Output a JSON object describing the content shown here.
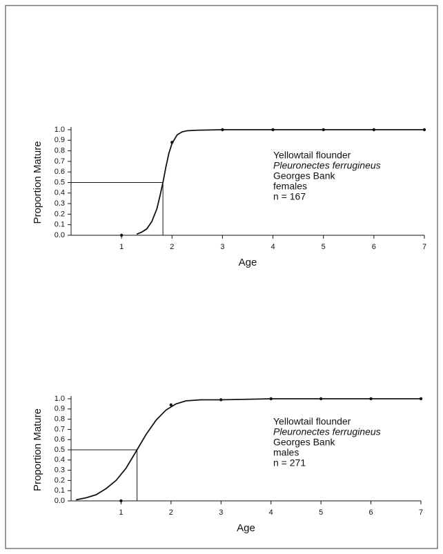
{
  "chart_data": [
    {
      "type": "scatter",
      "x_label": "Age",
      "y_label": "Proportion Mature",
      "annotation": [
        "Yellowtail flounder",
        "Pleuronectes ferrugineus",
        "Georges Bank",
        "females",
        "n = 167"
      ],
      "xlim": [
        0,
        7
      ],
      "xticks": [
        1,
        2,
        3,
        4,
        5,
        6,
        7
      ],
      "ylim": [
        0,
        1
      ],
      "yticks": [
        {
          "value": 0,
          "label": "0.0"
        },
        {
          "value": 0.1,
          "label": "0.1"
        },
        {
          "value": 0.2,
          "label": "0.2"
        },
        {
          "value": 0.3,
          "label": "0.3"
        },
        {
          "value": 0.4,
          "label": "0.4"
        },
        {
          "value": 0.5,
          "label": "0.5"
        },
        {
          "value": 0.6,
          "label": "0.6"
        },
        {
          "value": 0.7,
          "label": "0.7"
        },
        {
          "value": 0.8,
          "label": "0.8"
        },
        {
          "value": 0.9,
          "label": "0.9"
        },
        {
          "value": 1,
          "label": "1.0"
        }
      ],
      "points": {
        "x": [
          1,
          2,
          3,
          4,
          5,
          6,
          7
        ],
        "values": [
          0.0,
          0.88,
          1.0,
          1.0,
          1.0,
          1.0,
          1.0
        ]
      },
      "curve": {
        "x": [
          1.3,
          1.4,
          1.5,
          1.6,
          1.7,
          1.76,
          1.82,
          1.88,
          1.94,
          2.0,
          2.1,
          2.2,
          2.3,
          2.5,
          3,
          4,
          5,
          6,
          7
        ],
        "values": [
          0.01,
          0.03,
          0.06,
          0.13,
          0.25,
          0.37,
          0.5,
          0.65,
          0.78,
          0.87,
          0.95,
          0.98,
          0.99,
          0.995,
          1.0,
          1.0,
          1.0,
          1.0,
          1.0
        ]
      },
      "a50": {
        "x": 1.82,
        "y": 0.5
      },
      "color": "#111111"
    },
    {
      "type": "scatter",
      "x_label": "Age",
      "y_label": "Proportion Mature",
      "annotation": [
        "Yellowtail flounder",
        "Pleuronectes ferrugineus",
        "Georges Bank",
        "males",
        "n = 271"
      ],
      "xlim": [
        0,
        7
      ],
      "xticks": [
        1,
        2,
        3,
        4,
        5,
        6,
        7
      ],
      "ylim": [
        0,
        1
      ],
      "yticks": [
        {
          "value": 0,
          "label": "0.0"
        },
        {
          "value": 0.1,
          "label": "0.1"
        },
        {
          "value": 0.2,
          "label": "0.2"
        },
        {
          "value": 0.3,
          "label": "0.3"
        },
        {
          "value": 0.4,
          "label": "0.4"
        },
        {
          "value": 0.5,
          "label": "0.5"
        },
        {
          "value": 0.6,
          "label": "0.6"
        },
        {
          "value": 0.7,
          "label": "0.7"
        },
        {
          "value": 0.8,
          "label": "0.8"
        },
        {
          "value": 0.9,
          "label": "0.9"
        },
        {
          "value": 1,
          "label": "1.0"
        }
      ],
      "points": {
        "x": [
          1,
          2,
          3,
          4,
          5,
          6,
          7
        ],
        "values": [
          0.0,
          0.94,
          0.99,
          1.0,
          1.0,
          1.0,
          1.0
        ]
      },
      "curve": {
        "x": [
          0.1,
          0.3,
          0.5,
          0.7,
          0.9,
          1.1,
          1.32,
          1.5,
          1.7,
          1.9,
          2.1,
          2.3,
          2.6,
          3,
          4,
          5,
          6,
          7
        ],
        "values": [
          0.01,
          0.03,
          0.06,
          0.12,
          0.2,
          0.32,
          0.5,
          0.65,
          0.79,
          0.89,
          0.95,
          0.98,
          0.99,
          0.99,
          1.0,
          1.0,
          1.0,
          1.0
        ]
      },
      "a50": {
        "x": 1.32,
        "y": 0.5
      },
      "color": "#111111"
    }
  ]
}
